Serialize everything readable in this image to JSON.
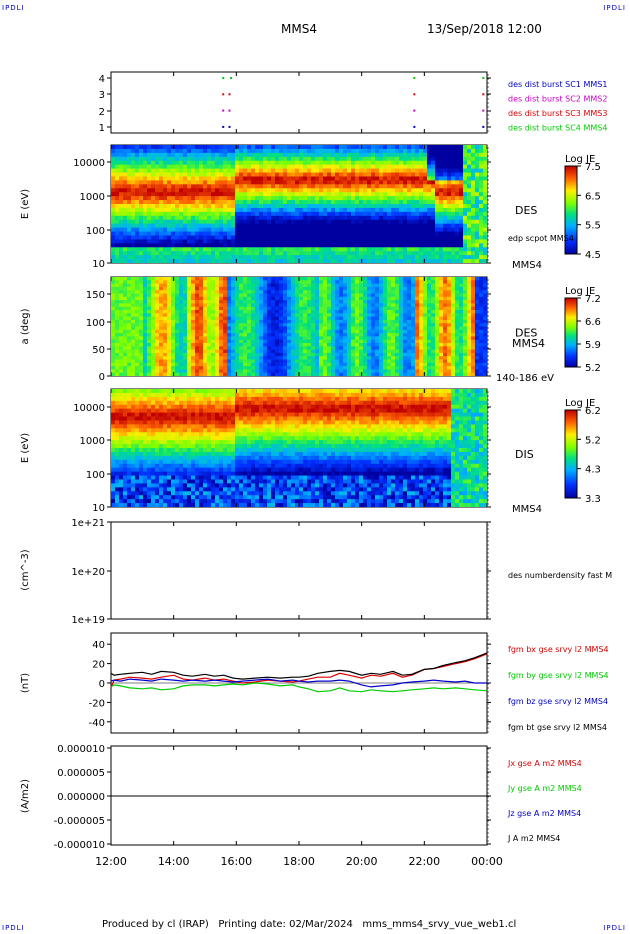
{
  "header": {
    "corner_tl": "IPDLI",
    "corner_tr": "IPDLI",
    "corner_bl": "IPDLI",
    "corner_br": "IPDLI",
    "spacecraft": "MMS4",
    "datetime": "13/Sep/2018 12:00"
  },
  "footer": {
    "produced_by": "Produced by cl (IRAP)",
    "printing_date": "Printing date: 02/Mar/2024",
    "file": "mms_mms4_srvy_vue_web1.cl"
  },
  "colors": {
    "red": "#dd0000",
    "green": "#00cc00",
    "blue": "#0000cc",
    "magenta": "#cc00cc",
    "black": "#000000"
  },
  "chart_data": [
    {
      "type": "scatter",
      "id": "burst",
      "ylim": [
        0.5,
        4.5
      ],
      "yticks": [
        "4",
        "3",
        "2",
        "1"
      ],
      "legend": [
        {
          "text": "des dist burst SC1 MMS1",
          "color": "#0000cc"
        },
        {
          "text": "des dist burst SC2 MMS2",
          "color": "#cc00cc"
        },
        {
          "text": "des dist burst SC3 MMS3",
          "color": "#dd0000"
        },
        {
          "text": "des dist burst SC4 MMS4",
          "color": "#00cc00"
        }
      ],
      "series": [
        {
          "sc": 1,
          "color": "#0000cc",
          "x": [
            15.55,
            15.75,
            21.65,
            23.85
          ]
        },
        {
          "sc": 2,
          "color": "#cc00cc",
          "x": [
            15.55,
            15.75,
            21.65,
            23.85
          ]
        },
        {
          "sc": 3,
          "color": "#dd0000",
          "x": [
            15.55,
            15.75,
            21.65,
            23.85
          ]
        },
        {
          "sc": 4,
          "color": "#00cc00",
          "x": [
            15.55,
            15.8,
            21.65,
            23.85
          ]
        }
      ]
    },
    {
      "type": "heatmap",
      "id": "des_energy",
      "ylabel": "E (eV)",
      "log_y": true,
      "yticks": [
        "10000",
        "1000",
        "100",
        "10"
      ],
      "label": "DES",
      "sublabel": "edp scpot MMS4",
      "bottom_label": "MMS4",
      "colorbar": {
        "title": "Log JE",
        "ticks": [
          "7.5",
          "6.5",
          "5.5",
          "4.5"
        ],
        "range": [
          4.5,
          7.5
        ]
      }
    },
    {
      "type": "heatmap",
      "id": "des_pitch",
      "ylabel": "a (deg)",
      "yticks": [
        "150",
        "100",
        "50",
        "0"
      ],
      "label": "DES",
      "sublabel": "MMS4",
      "bottom_label": "140-186 eV",
      "colorbar": {
        "title": "Log JE",
        "ticks": [
          "7.2",
          "6.6",
          "5.9",
          "5.2"
        ],
        "range": [
          5.2,
          7.2
        ]
      }
    },
    {
      "type": "heatmap",
      "id": "dis_energy",
      "ylabel": "E (eV)",
      "log_y": true,
      "yticks": [
        "10000",
        "1000",
        "100",
        "10"
      ],
      "label": "DIS",
      "bottom_label": "MMS4",
      "colorbar": {
        "title": "Log JE",
        "ticks": [
          "6.2",
          "5.2",
          "4.3",
          "3.3"
        ],
        "range": [
          3.3,
          6.2
        ]
      }
    },
    {
      "type": "line",
      "id": "density",
      "ylabel": "(cm^-3)",
      "log_y": true,
      "yticks": [
        "1e+21",
        "1e+20",
        "1e+19"
      ],
      "legend": [
        {
          "text": "des numberdensity fast M",
          "color": "#000000"
        }
      ],
      "series": []
    },
    {
      "type": "line",
      "id": "bfield",
      "ylabel": "(nT)",
      "ylim": [
        -50,
        50
      ],
      "yticks": [
        "40",
        "20",
        "0",
        "-20",
        "-40"
      ],
      "x": [
        12,
        12.1,
        12.3,
        12.6,
        13,
        13.3,
        13.6,
        14,
        14.3,
        14.6,
        15,
        15.3,
        15.6,
        15.9,
        16.2,
        16.6,
        17,
        17.4,
        17.8,
        18,
        18.3,
        18.6,
        19,
        19.3,
        19.6,
        20,
        20.3,
        20.6,
        21,
        21.3,
        21.6,
        22,
        22.3,
        22.6,
        23,
        23.3,
        23.6,
        24
      ],
      "series": [
        {
          "name": "fgm bx gse srvy l2 MMS4",
          "color": "#dd0000",
          "values": [
            -5,
            3,
            4,
            6,
            5,
            4,
            6,
            8,
            4,
            3,
            5,
            3,
            4,
            2,
            0,
            1,
            3,
            2,
            1,
            2,
            4,
            6,
            6,
            10,
            8,
            5,
            8,
            7,
            10,
            6,
            8,
            14,
            15,
            17,
            20,
            22,
            25,
            30
          ]
        },
        {
          "name": "fgm by gse srvy l2 MMS4",
          "color": "#00cc00",
          "values": [
            -4,
            -2,
            -3,
            -5,
            -6,
            -5,
            -7,
            -6,
            -3,
            -2,
            -2,
            -3,
            -2,
            -1,
            -2,
            0,
            -1,
            -3,
            -2,
            -4,
            -6,
            -9,
            -8,
            -5,
            -8,
            -9,
            -7,
            -8,
            -9,
            -8,
            -7,
            -6,
            -5,
            -6,
            -5,
            -6,
            -7,
            -8
          ]
        },
        {
          "name": "fgm bz gse srvy l2 MMS4",
          "color": "#0000cc",
          "values": [
            2,
            3,
            2,
            4,
            3,
            2,
            4,
            3,
            2,
            3,
            2,
            3,
            2,
            1,
            2,
            3,
            4,
            2,
            3,
            2,
            1,
            2,
            2,
            3,
            2,
            -2,
            -4,
            -3,
            -2,
            0,
            1,
            2,
            3,
            2,
            1,
            2,
            0,
            0
          ]
        },
        {
          "name": "fgm bt gse srvy l2 MMS4",
          "color": "#000000",
          "values": [
            10,
            8,
            9,
            10,
            11,
            9,
            12,
            11,
            8,
            7,
            9,
            7,
            8,
            5,
            4,
            5,
            6,
            5,
            6,
            6,
            7,
            10,
            12,
            13,
            12,
            8,
            10,
            9,
            12,
            8,
            9,
            14,
            15,
            18,
            21,
            23,
            26,
            31
          ]
        }
      ]
    },
    {
      "type": "line",
      "id": "current",
      "ylabel": "(A/m2)",
      "ylim": [
        -1e-05,
        1e-05
      ],
      "yticks": [
        "0.000010",
        "0.000005",
        "0.000000",
        "-0.000005",
        "-0.000010"
      ],
      "xticks": [
        "12:00",
        "14:00",
        "16:00",
        "18:00",
        "20:00",
        "22:00",
        "00:00"
      ],
      "x": [
        12,
        24
      ],
      "series": [
        {
          "name": "Jx gse A m2 MMS4",
          "color": "#dd0000",
          "values": [
            0,
            0
          ]
        },
        {
          "name": "Jy gse A m2 MMS4",
          "color": "#00cc00",
          "values": [
            0,
            0
          ]
        },
        {
          "name": "Jz gse A m2 MMS4",
          "color": "#0000cc",
          "values": [
            0,
            0
          ]
        },
        {
          "name": "J A m2 MMS4",
          "color": "#000000",
          "values": [
            0,
            0
          ]
        }
      ]
    }
  ]
}
